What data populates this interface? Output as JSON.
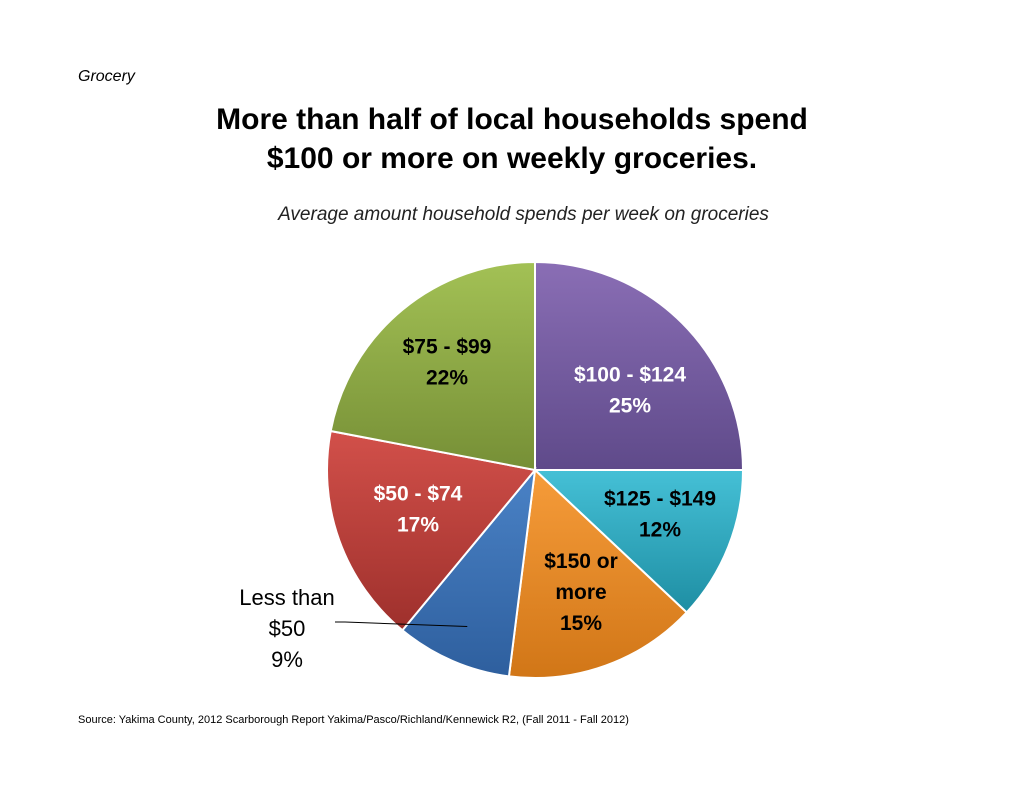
{
  "page": {
    "section_label": "Grocery",
    "title_line1": "More than half of local households spend",
    "title_line2": "$100 or more on weekly groceries.",
    "subtitle": "Average amount household spends per week on groceries",
    "source": "Source: Yakima County, 2012 Scarborough Report Yakima/Pasco/Richland/Kennewick R2, (Fall 2011 - Fall 2012)"
  },
  "chart_data": {
    "type": "pie",
    "title": "Average amount household spends per week on groceries",
    "start_angle_deg": 0,
    "direction": "clockwise",
    "slices": [
      {
        "label_lines": [
          "$100 - $124",
          "25%"
        ],
        "category": "$100 - $124",
        "value": 25,
        "color_light": "#8a6eb5",
        "color_dark": "#5f4a8a",
        "label_color": "#ffffff",
        "label_inside": true
      },
      {
        "label_lines": [
          "$125 - $149",
          "12%"
        ],
        "category": "$125 - $149",
        "value": 12,
        "color_light": "#45c0d6",
        "color_dark": "#1e8ea3",
        "label_color": "#000000",
        "label_inside": true
      },
      {
        "label_lines": [
          "$150 or",
          "more",
          "15%"
        ],
        "category": "$150 or more",
        "value": 15,
        "color_light": "#f69c3a",
        "color_dark": "#d17617",
        "label_color": "#000000",
        "label_inside": true
      },
      {
        "label_lines": [
          "Less than",
          "$50",
          "9%"
        ],
        "category": "Less than $50",
        "value": 9,
        "color_light": "#4a82c6",
        "color_dark": "#2e5f9e",
        "label_color": "#000000",
        "label_inside": false
      },
      {
        "label_lines": [
          "$50 - $74",
          "17%"
        ],
        "category": "$50 - $74",
        "value": 17,
        "color_light": "#d2504a",
        "color_dark": "#9e302c",
        "label_color": "#ffffff",
        "label_inside": true
      },
      {
        "label_lines": [
          "$75 - $99",
          "22%"
        ],
        "category": "$75 - $99",
        "value": 22,
        "color_light": "#a3c155",
        "color_dark": "#768f36",
        "label_color": "#000000",
        "label_inside": true
      }
    ]
  }
}
